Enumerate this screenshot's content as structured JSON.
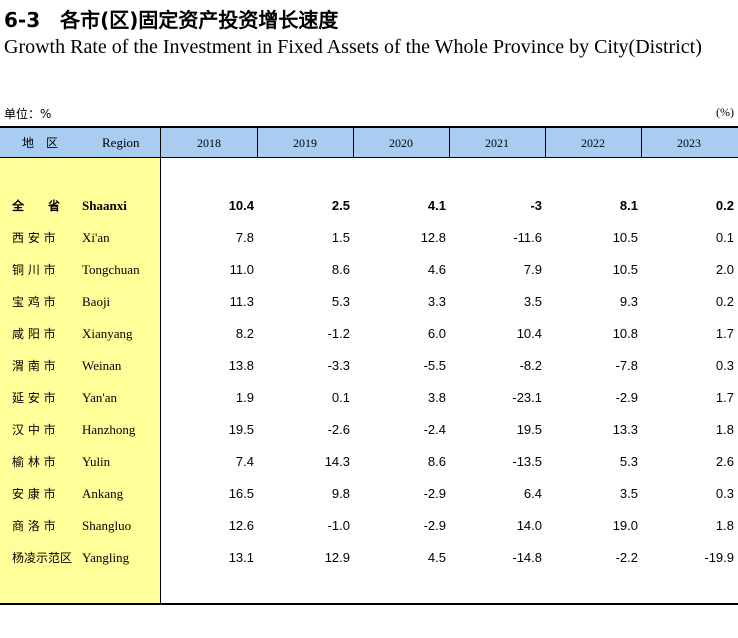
{
  "header": {
    "title_cn": "6-3　各市(区)固定资产投资增长速度",
    "title_en": "Growth Rate of the Investment in Fixed Assets of the Whole Province by City(District)"
  },
  "unit": {
    "left": "单位：%",
    "right": "(%)"
  },
  "table": {
    "columns": [
      "地　区",
      "Region",
      "2018",
      "2019",
      "2020",
      "2021",
      "2022",
      "2023"
    ],
    "rows": [
      [
        "全　　省",
        "Shaanxi",
        "10.4",
        "2.5",
        "4.1",
        "-3",
        "8.1",
        "0.2"
      ],
      [
        "西 安 市",
        "Xi'an",
        "7.8",
        "1.5",
        "12.8",
        "-11.6",
        "10.5",
        "0.1"
      ],
      [
        "铜 川 市",
        "Tongchuan",
        "11.0",
        "8.6",
        "4.6",
        "7.9",
        "10.5",
        "2.0"
      ],
      [
        "宝 鸡 市",
        "Baoji",
        "11.3",
        "5.3",
        "3.3",
        "3.5",
        "9.3",
        "0.2"
      ],
      [
        "咸 阳 市",
        "Xianyang",
        "8.2",
        "-1.2",
        "6.0",
        "10.4",
        "10.8",
        "1.7"
      ],
      [
        "渭 南 市",
        "Weinan",
        "13.8",
        "-3.3",
        "-5.5",
        "-8.2",
        "-7.8",
        "0.3"
      ],
      [
        "延 安 市",
        "Yan'an",
        "1.9",
        "0.1",
        "3.8",
        "-23.1",
        "-2.9",
        "1.7"
      ],
      [
        "汉 中 市",
        "Hanzhong",
        "19.5",
        "-2.6",
        "-2.4",
        "19.5",
        "13.3",
        "1.8"
      ],
      [
        "榆 林 市",
        "Yulin",
        "7.4",
        "14.3",
        "8.6",
        "-13.5",
        "5.3",
        "2.6"
      ],
      [
        "安 康 市",
        "Ankang",
        "16.5",
        "9.8",
        "-2.9",
        "6.4",
        "3.5",
        "0.3"
      ],
      [
        "商 洛 市",
        "Shangluo",
        "12.6",
        "-1.0",
        "-2.9",
        "14.0",
        "19.0",
        "1.8"
      ],
      [
        "杨凌示范区",
        "Yangling",
        "13.1",
        "12.9",
        "4.5",
        "-14.8",
        "-2.2",
        "-19.9"
      ]
    ]
  }
}
